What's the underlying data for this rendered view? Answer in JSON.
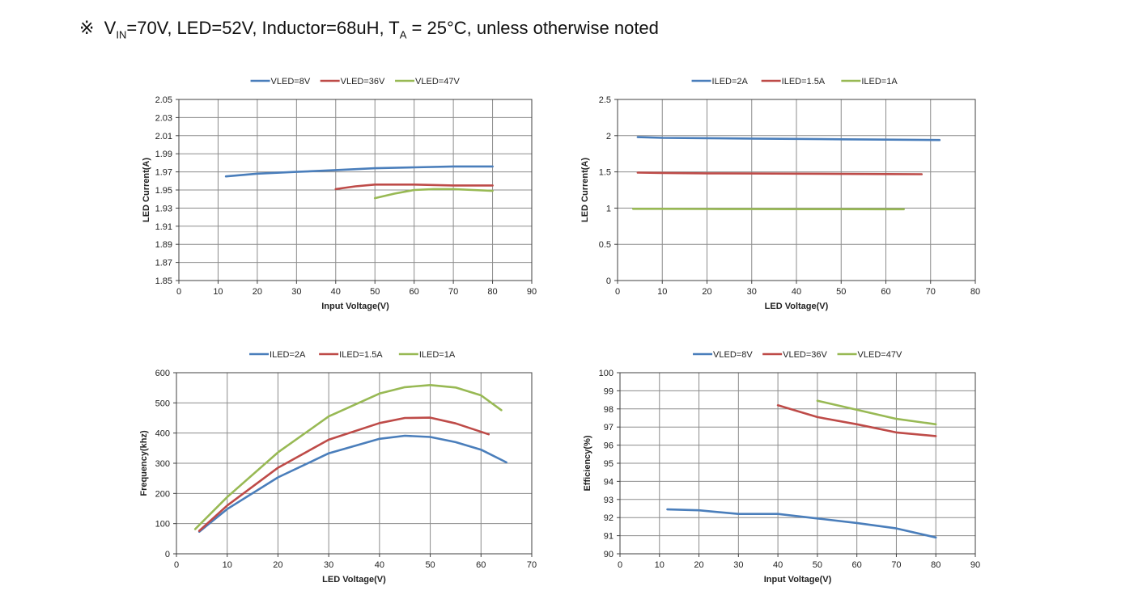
{
  "header": {
    "symbol": "※",
    "v_main": "V",
    "v_sub": "IN",
    "mid_text": "=70V, LED=52V, Inductor=68uH, T",
    "t_sub": "A",
    "end_text": " = 25°C, unless otherwise noted"
  },
  "chart_data": [
    {
      "type": "line",
      "title": "",
      "xlabel": "Input Voltage(V)",
      "ylabel": "LED Current(A)",
      "xlim": [
        0,
        90
      ],
      "ylim": [
        1.85,
        2.05
      ],
      "xticks": [
        0,
        10,
        20,
        30,
        40,
        50,
        60,
        70,
        80,
        90
      ],
      "yticks": [
        1.85,
        1.87,
        1.89,
        1.91,
        1.93,
        1.95,
        1.97,
        1.99,
        2.01,
        2.03,
        2.05
      ],
      "ytick_labels": [
        "1.85",
        "1.87",
        "1.89",
        "1.91",
        "1.93",
        "1.95",
        "1.97",
        "1.99",
        "2.01",
        "2.03",
        "2.05"
      ],
      "grid": true,
      "legend": "top-center",
      "series": [
        {
          "name": "VLED=8V",
          "color": "#4a7ebb",
          "x": [
            12,
            20,
            30,
            40,
            50,
            60,
            70,
            80
          ],
          "y": [
            1.965,
            1.968,
            1.97,
            1.972,
            1.974,
            1.975,
            1.976,
            1.976
          ]
        },
        {
          "name": "VLED=36V",
          "color": "#be4b48",
          "x": [
            40,
            45,
            50,
            55,
            60,
            70,
            80
          ],
          "y": [
            1.951,
            1.954,
            1.956,
            1.956,
            1.956,
            1.955,
            1.955
          ]
        },
        {
          "name": "VLED=47V",
          "color": "#98b954",
          "x": [
            50,
            55,
            60,
            65,
            70,
            75,
            80
          ],
          "y": [
            1.941,
            1.946,
            1.95,
            1.951,
            1.951,
            1.95,
            1.949
          ]
        }
      ]
    },
    {
      "type": "line",
      "title": "",
      "xlabel": "LED Voltage(V)",
      "ylabel": "LED Current(A)",
      "xlim": [
        0,
        80
      ],
      "ylim": [
        0,
        2.5
      ],
      "xticks": [
        0,
        10,
        20,
        30,
        40,
        50,
        60,
        70,
        80
      ],
      "yticks": [
        0,
        0.5,
        1,
        1.5,
        2,
        2.5
      ],
      "ytick_labels": [
        "0",
        "0.5",
        "1",
        "1.5",
        "2",
        "2.5"
      ],
      "grid": true,
      "legend": "top-center",
      "series": [
        {
          "name": "ILED=2A",
          "color": "#4a7ebb",
          "x": [
            4.5,
            10,
            20,
            30,
            40,
            50,
            60,
            72
          ],
          "y": [
            1.98,
            1.97,
            1.965,
            1.96,
            1.955,
            1.95,
            1.945,
            1.94
          ]
        },
        {
          "name": "ILED=1.5A",
          "color": "#be4b48",
          "x": [
            4.5,
            10,
            20,
            30,
            40,
            50,
            60,
            68
          ],
          "y": [
            1.49,
            1.485,
            1.48,
            1.478,
            1.475,
            1.472,
            1.47,
            1.468
          ]
        },
        {
          "name": "ILED=1A",
          "color": "#98b954",
          "x": [
            3.5,
            10,
            20,
            30,
            40,
            50,
            60,
            64
          ],
          "y": [
            0.99,
            0.99,
            0.988,
            0.987,
            0.986,
            0.985,
            0.984,
            0.984
          ]
        }
      ]
    },
    {
      "type": "line",
      "title": "",
      "xlabel": "LED Voltage(V)",
      "ylabel": "Frequency(khz)",
      "xlim": [
        0,
        70
      ],
      "ylim": [
        0,
        600
      ],
      "xticks": [
        0,
        10,
        20,
        30,
        40,
        50,
        60,
        70
      ],
      "yticks": [
        0,
        100,
        200,
        300,
        400,
        500,
        600
      ],
      "ytick_labels": [
        "0",
        "100",
        "200",
        "300",
        "400",
        "500",
        "600"
      ],
      "grid": true,
      "legend": "top-center",
      "series": [
        {
          "name": "ILED=2A",
          "color": "#4a7ebb",
          "x": [
            4.5,
            10,
            20,
            30,
            40,
            45,
            50,
            55,
            60,
            65
          ],
          "y": [
            73,
            148,
            253,
            333,
            381,
            391,
            387,
            370,
            345,
            303
          ]
        },
        {
          "name": "ILED=1.5A",
          "color": "#be4b48",
          "x": [
            4.5,
            10,
            20,
            30,
            40,
            45,
            50,
            55,
            61.5
          ],
          "y": [
            76,
            160,
            285,
            378,
            433,
            450,
            451,
            432,
            396
          ]
        },
        {
          "name": "ILED=1A",
          "color": "#98b954",
          "x": [
            3.7,
            10,
            20,
            30,
            40,
            45,
            50,
            55,
            60,
            64
          ],
          "y": [
            82,
            188,
            336,
            455,
            531,
            552,
            559,
            551,
            525,
            476
          ]
        }
      ]
    },
    {
      "type": "line",
      "title": "",
      "xlabel": "Input Voltage(V)",
      "ylabel": "Efficiency(%)",
      "xlim": [
        0,
        90
      ],
      "ylim": [
        90,
        100
      ],
      "xticks": [
        0,
        10,
        20,
        30,
        40,
        50,
        60,
        70,
        80,
        90
      ],
      "yticks": [
        90,
        91,
        92,
        93,
        94,
        95,
        96,
        97,
        98,
        99,
        100
      ],
      "ytick_labels": [
        "90",
        "91",
        "92",
        "93",
        "94",
        "95",
        "96",
        "97",
        "98",
        "99",
        "100"
      ],
      "grid": true,
      "legend": "top-center",
      "series": [
        {
          "name": "VLED=8V",
          "color": "#4a7ebb",
          "x": [
            12,
            20,
            30,
            40,
            50,
            60,
            70,
            80
          ],
          "y": [
            92.45,
            92.4,
            92.2,
            92.2,
            91.95,
            91.7,
            91.4,
            90.9
          ]
        },
        {
          "name": "VLED=36V",
          "color": "#be4b48",
          "x": [
            40,
            50,
            60,
            70,
            80
          ],
          "y": [
            98.2,
            97.55,
            97.15,
            96.7,
            96.5
          ]
        },
        {
          "name": "VLED=47V",
          "color": "#98b954",
          "x": [
            50,
            60,
            70,
            80
          ],
          "y": [
            98.45,
            97.95,
            97.45,
            97.15
          ]
        }
      ]
    }
  ]
}
